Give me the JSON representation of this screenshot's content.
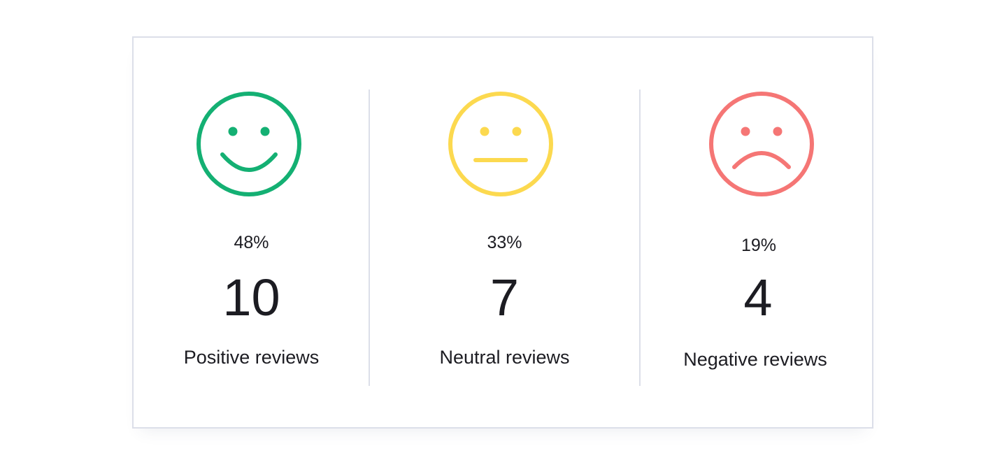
{
  "colors": {
    "positive": "#14b073",
    "neutral": "#fcd94f",
    "negative": "#f57675",
    "border": "#dcdfe9",
    "text": "#1c1c22"
  },
  "reviews": [
    {
      "icon": "smiling-face-icon",
      "percent": "48%",
      "count": "10",
      "label": "Positive reviews"
    },
    {
      "icon": "neutral-face-icon",
      "percent": "33%",
      "count": "7",
      "label": "Neutral reviews"
    },
    {
      "icon": "frowning-face-icon",
      "percent": "19%",
      "count": "4",
      "label": "Negative reviews"
    }
  ]
}
